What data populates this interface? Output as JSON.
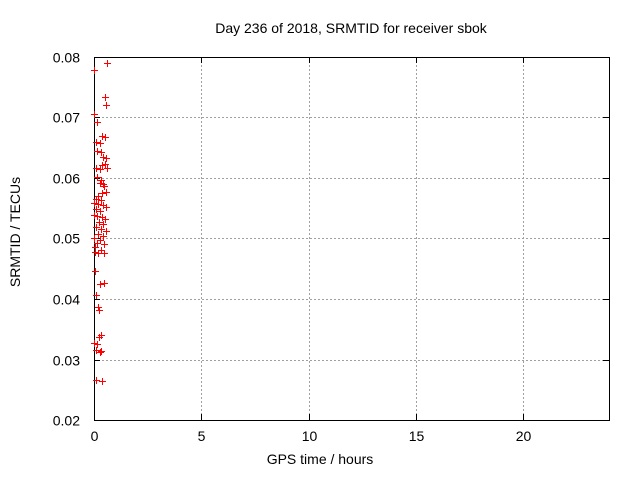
{
  "chart_data": {
    "type": "scatter",
    "title": "Day 236 of 2018, SRMTID for receiver sbok",
    "xlabel": "GPS time / hours",
    "ylabel": "SRMTID / TECUs",
    "xlim": [
      0,
      24
    ],
    "ylim": [
      0.02,
      0.08
    ],
    "xticks": [
      0,
      5,
      10,
      15,
      20
    ],
    "xtick_labels": [
      "0",
      "5",
      "10",
      "15",
      "20"
    ],
    "yticks": [
      0.02,
      0.03,
      0.04,
      0.05,
      0.06,
      0.07,
      0.08
    ],
    "ytick_labels": [
      "0.02",
      "0.03",
      "0.04",
      "0.05",
      "0.06",
      "0.07",
      "0.08"
    ],
    "grid": true,
    "legend_position": "none",
    "marker": "plus",
    "marker_color": "#ff0000",
    "grid_color": "#a0a0a0",
    "series": [
      {
        "name": "SRMTID",
        "points": [
          [
            0.6,
            0.079
          ],
          [
            0.0,
            0.0779
          ],
          [
            0.51,
            0.0734
          ],
          [
            0.56,
            0.0721
          ],
          [
            0.0,
            0.0706
          ],
          [
            0.14,
            0.0693
          ],
          [
            0.37,
            0.0669
          ],
          [
            0.51,
            0.0668
          ],
          [
            0.09,
            0.066
          ],
          [
            0.28,
            0.0658
          ],
          [
            0.14,
            0.0645
          ],
          [
            0.33,
            0.0643
          ],
          [
            0.42,
            0.0635
          ],
          [
            0.56,
            0.0633
          ],
          [
            0.51,
            0.0623
          ],
          [
            0.37,
            0.0621
          ],
          [
            0.09,
            0.0617
          ],
          [
            0.6,
            0.0617
          ],
          [
            0.28,
            0.0615
          ],
          [
            0.14,
            0.0602
          ],
          [
            0.33,
            0.0597
          ],
          [
            0.28,
            0.0592
          ],
          [
            0.42,
            0.059
          ],
          [
            0.47,
            0.0587
          ],
          [
            0.56,
            0.0577
          ],
          [
            0.37,
            0.0575
          ],
          [
            0.19,
            0.057
          ],
          [
            0.09,
            0.0565
          ],
          [
            0.33,
            0.0564
          ],
          [
            0.0,
            0.0559
          ],
          [
            0.19,
            0.0557
          ],
          [
            0.42,
            0.0556
          ],
          [
            0.56,
            0.0552
          ],
          [
            0.09,
            0.0549
          ],
          [
            0.28,
            0.0546
          ],
          [
            0.0,
            0.0539
          ],
          [
            0.14,
            0.0537
          ],
          [
            0.37,
            0.0536
          ],
          [
            0.51,
            0.0532
          ],
          [
            0.23,
            0.0527
          ],
          [
            0.42,
            0.0524
          ],
          [
            0.09,
            0.0519
          ],
          [
            0.33,
            0.0516
          ],
          [
            0.56,
            0.0512
          ],
          [
            0.19,
            0.0507
          ],
          [
            0.42,
            0.0504
          ],
          [
            0.0,
            0.0501
          ],
          [
            0.28,
            0.0498
          ],
          [
            0.14,
            0.0493
          ],
          [
            0.47,
            0.0491
          ],
          [
            0.05,
            0.0486
          ],
          [
            0.33,
            0.0481
          ],
          [
            0.05,
            0.0478
          ],
          [
            0.19,
            0.0476
          ],
          [
            0.47,
            0.0476
          ],
          [
            0.05,
            0.0446
          ],
          [
            0.28,
            0.0425
          ],
          [
            0.47,
            0.0427
          ],
          [
            0.09,
            0.0407
          ],
          [
            0.19,
            0.0387
          ],
          [
            0.23,
            0.0382
          ],
          [
            0.33,
            0.034
          ],
          [
            0.23,
            0.0337
          ],
          [
            0.0,
            0.0327
          ],
          [
            0.14,
            0.0326
          ],
          [
            0.09,
            0.0316
          ],
          [
            0.33,
            0.0314
          ],
          [
            0.28,
            0.0312
          ],
          [
            0.09,
            0.0266
          ],
          [
            0.37,
            0.0264
          ]
        ]
      }
    ]
  }
}
